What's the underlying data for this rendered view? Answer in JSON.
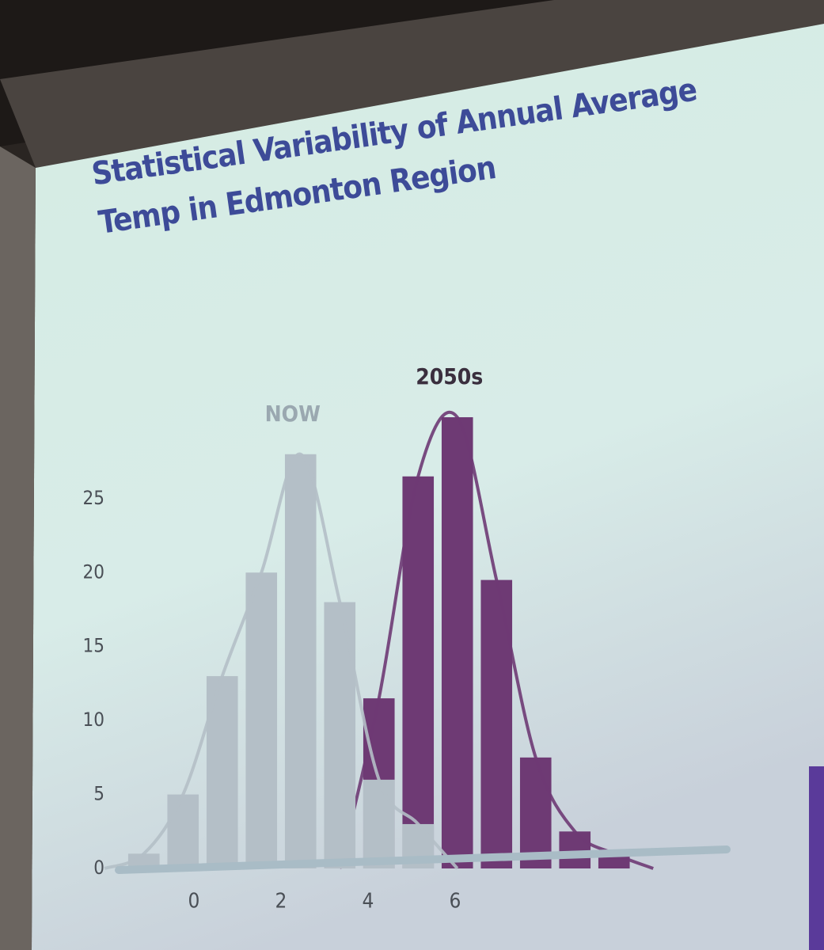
{
  "chart_data": {
    "type": "histogram",
    "title": "Statistical Variability of Annual Average Temp in Edmonton Region",
    "bins": [
      -1.6,
      -0.7,
      0.2,
      1.1,
      2.0,
      2.9,
      3.8,
      4.7,
      5.6,
      6.5,
      7.4,
      8.3,
      9.2,
      10.1
    ],
    "series": [
      {
        "name": "2050s",
        "color": "#6e3a74",
        "values": [
          0,
          0,
          0,
          0,
          0,
          0,
          11.5,
          26.5,
          30.5,
          19.5,
          7.5,
          2.5,
          1
        ]
      },
      {
        "name": "NOW",
        "color": "#b4bfc7",
        "values": [
          1,
          5,
          13,
          20,
          28,
          18,
          6,
          3,
          0,
          0,
          0,
          0,
          0
        ]
      }
    ],
    "xlim": [
      -2,
      11
    ],
    "xticks": [
      0,
      2,
      4,
      6
    ],
    "ylim": [
      0,
      32
    ],
    "yticks": [
      0,
      5,
      10,
      15,
      20,
      25
    ],
    "grid": false
  }
}
